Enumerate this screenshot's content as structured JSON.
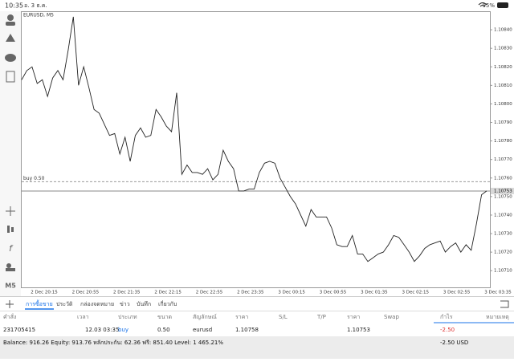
{
  "status": {
    "time": "10:35",
    "date": "อ. 3 ธ.ค.",
    "battery": "95%"
  },
  "chart_data": {
    "type": "line",
    "title": "EURUSD, M5",
    "color": "#222222",
    "values": [
      1.10813,
      1.10818,
      1.1082,
      1.10811,
      1.10813,
      1.10804,
      1.10814,
      1.10818,
      1.10813,
      1.10829,
      1.10847,
      1.1081,
      1.1082,
      1.10809,
      1.10797,
      1.10795,
      1.10789,
      1.10783,
      1.10784,
      1.10773,
      1.10782,
      1.10769,
      1.10783,
      1.10787,
      1.10782,
      1.10783,
      1.10797,
      1.10793,
      1.10788,
      1.10785,
      1.10806,
      1.10762,
      1.10767,
      1.10763,
      1.10763,
      1.10762,
      1.10765,
      1.10759,
      1.10762,
      1.10775,
      1.10769,
      1.10765,
      1.10753,
      1.10753,
      1.10754,
      1.10754,
      1.10763,
      1.10768,
      1.10769,
      1.10768,
      1.1076,
      1.10755,
      1.1075,
      1.10746,
      1.1074,
      1.10734,
      1.10743,
      1.10739,
      1.10739,
      1.10739,
      1.10733,
      1.10724,
      1.10723,
      1.10723,
      1.10729,
      1.10719,
      1.10719,
      1.10715,
      1.10717,
      1.10719,
      1.1072,
      1.10724,
      1.10729,
      1.10728,
      1.10724,
      1.1072,
      1.10715,
      1.10718,
      1.10722,
      1.10724,
      1.10725,
      1.10726,
      1.1072,
      1.10723,
      1.10725,
      1.1072,
      1.10724,
      1.10721,
      1.10735,
      1.10751,
      1.10753
    ],
    "ylim": [
      1.10701,
      1.1085
    ],
    "yticks": [
      {
        "value": 1.1084,
        "label": "1.10840"
      },
      {
        "value": 1.1083,
        "label": "1.10830"
      },
      {
        "value": 1.1082,
        "label": "1.10820"
      },
      {
        "value": 1.1081,
        "label": "1.10810"
      },
      {
        "value": 1.108,
        "label": "1.10800"
      },
      {
        "value": 1.1079,
        "label": "1.10790"
      },
      {
        "value": 1.1078,
        "label": "1.10780"
      },
      {
        "value": 1.1077,
        "label": "1.10770"
      },
      {
        "value": 1.1076,
        "label": "1.10760"
      },
      {
        "value": 1.1075,
        "label": "1.10750"
      },
      {
        "value": 1.1074,
        "label": "1.10740"
      },
      {
        "value": 1.1073,
        "label": "1.10730"
      },
      {
        "value": 1.1072,
        "label": "1.10720"
      },
      {
        "value": 1.1071,
        "label": "1.10710"
      }
    ],
    "x_labels": [
      "2 Dec 20:15",
      "2 Dec 20:55",
      "2 Dec 21:35",
      "2 Dec 22:15",
      "2 Dec 22:55",
      "2 Dec 23:35",
      "3 Dec 00:15",
      "3 Dec 00:55",
      "3 Dec 01:35",
      "3 Dec 02:15",
      "3 Dec 02:55",
      "3 Dec 03:35"
    ],
    "current_price": 1.10753,
    "order_line": {
      "label": "buy 0.50",
      "value": 1.10758
    }
  },
  "side_label": "M5",
  "tabs": [
    "การซื้อขาย",
    "ประวัติ",
    "กล่องจดหมาย",
    "ข่าว",
    "บันทึก",
    "เกี่ยวกับ"
  ],
  "table": {
    "headers": [
      "คำสั่ง",
      "เวลา",
      "ประเภท",
      "ขนาด",
      "สัญลักษณ์",
      "ราคา",
      "S/L",
      "T/P",
      "ราคา",
      "Swap",
      "กำไร",
      "หมายเหตุ"
    ],
    "rows": [
      [
        "231705415",
        "12.03 03:35",
        "buy",
        "0.50",
        "eurusd",
        "1.10758",
        "",
        "",
        "1.10753",
        "",
        "-2.50",
        ""
      ]
    ]
  },
  "balance": {
    "text": "Balance: 916.26 Equity: 913.76 หลักประกัน: 62.36 ฟรี: 851.40 Level: 1 465.21%",
    "profit": "-2.50 USD"
  }
}
